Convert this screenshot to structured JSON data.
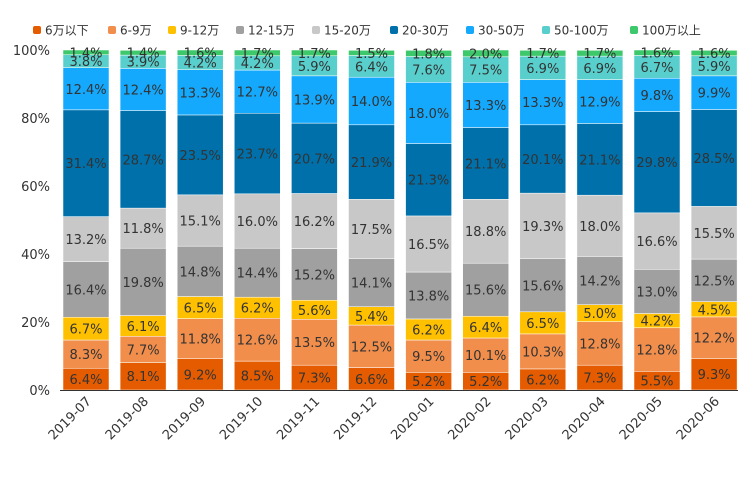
{
  "chart_data": {
    "type": "bar",
    "stacked": true,
    "title": "",
    "xlabel": "",
    "ylabel": "",
    "ylim": [
      0,
      100
    ],
    "yticks": [
      "0%",
      "20%",
      "40%",
      "60%",
      "80%",
      "100%"
    ],
    "ytick_values": [
      0,
      20,
      40,
      60,
      80,
      100
    ],
    "legend_position": "top",
    "grid": false,
    "categories": [
      "2019-07",
      "2019-08",
      "2019-09",
      "2019-10",
      "2019-11",
      "2019-12",
      "2020-01",
      "2020-02",
      "2020-03",
      "2020-04",
      "2020-05",
      "2020-06"
    ],
    "series": [
      {
        "name": "6万以下",
        "color": "#e55c00",
        "values": [
          6.4,
          8.1,
          9.2,
          8.5,
          7.3,
          6.6,
          5.2,
          5.2,
          6.2,
          7.3,
          5.5,
          9.3
        ]
      },
      {
        "name": "6-9万",
        "color": "#f28e4b",
        "values": [
          8.3,
          7.7,
          11.8,
          12.6,
          13.5,
          12.5,
          9.5,
          10.1,
          10.3,
          12.8,
          12.8,
          12.2
        ]
      },
      {
        "name": "9-12万",
        "color": "#ffc000",
        "values": [
          6.7,
          6.1,
          6.5,
          6.2,
          5.6,
          5.4,
          6.2,
          6.4,
          6.5,
          5.0,
          4.2,
          4.5
        ]
      },
      {
        "name": "12-15万",
        "color": "#a0a0a0",
        "values": [
          16.4,
          19.8,
          14.8,
          14.4,
          15.2,
          14.1,
          13.8,
          15.6,
          15.6,
          14.2,
          13.0,
          12.5
        ]
      },
      {
        "name": "15-20万",
        "color": "#c8c8c8",
        "values": [
          13.2,
          11.8,
          15.1,
          16.0,
          16.2,
          17.5,
          16.5,
          18.8,
          19.3,
          18.0,
          16.6,
          15.5
        ]
      },
      {
        "name": "20-30万",
        "color": "#0070aa",
        "values": [
          31.4,
          28.7,
          23.5,
          23.7,
          20.7,
          21.9,
          21.3,
          21.1,
          20.1,
          21.1,
          29.8,
          28.5
        ]
      },
      {
        "name": "30-50万",
        "color": "#14a9fd",
        "values": [
          12.4,
          12.4,
          13.3,
          12.7,
          13.9,
          14.0,
          18.0,
          13.3,
          13.3,
          12.9,
          9.8,
          9.9
        ]
      },
      {
        "name": "50-100万",
        "color": "#58cfcc",
        "values": [
          3.8,
          3.9,
          4.2,
          4.2,
          5.9,
          6.4,
          7.6,
          7.5,
          6.9,
          6.9,
          6.7,
          5.9
        ]
      },
      {
        "name": "100万以上",
        "color": "#3cc86b",
        "values": [
          1.4,
          1.4,
          1.6,
          1.7,
          1.7,
          1.5,
          1.8,
          2.0,
          1.7,
          1.7,
          1.6,
          1.6
        ]
      }
    ]
  }
}
